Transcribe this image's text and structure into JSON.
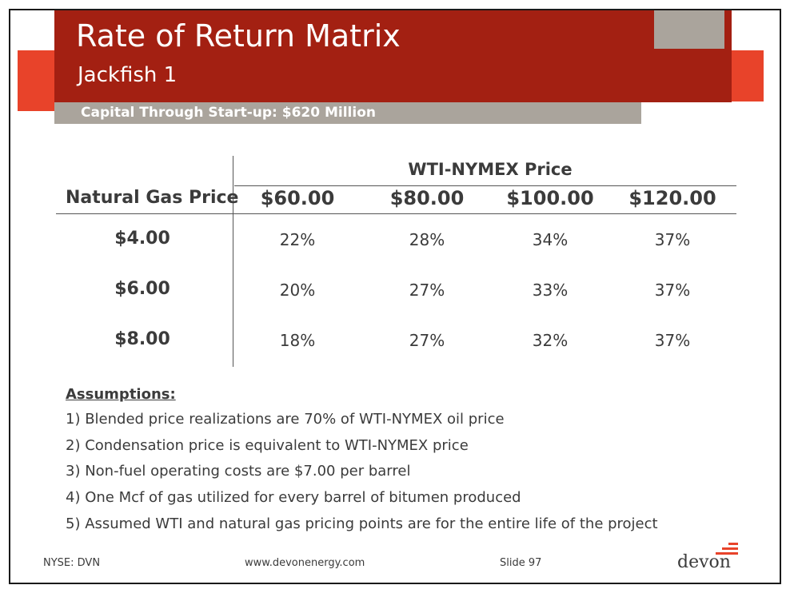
{
  "header": {
    "title": "Rate of Return Matrix",
    "subtitle": "Jackfish 1",
    "capital": "Capital Through Start-up: $620 Million"
  },
  "table": {
    "group_header": "WTI-NYMEX Price",
    "row_header": "Natural Gas Price",
    "columns": [
      "$60.00",
      "$80.00",
      "$100.00",
      "$120.00"
    ],
    "rows": [
      {
        "label": "$4.00",
        "values": [
          "22%",
          "28%",
          "34%",
          "37%"
        ]
      },
      {
        "label": "$6.00",
        "values": [
          "20%",
          "27%",
          "33%",
          "37%"
        ]
      },
      {
        "label": "$8.00",
        "values": [
          "18%",
          "27%",
          "32%",
          "37%"
        ]
      }
    ]
  },
  "assumptions": {
    "heading": "Assumptions:",
    "items": [
      "1) Blended price realizations are 70% of WTI-NYMEX oil price",
      "2) Condensation price is equivalent to WTI-NYMEX price",
      "3) Non-fuel operating costs are $7.00 per barrel",
      "4) One Mcf of gas utilized for every barrel of bitumen produced",
      "5) Assumed WTI and natural gas pricing points are for the entire life of the project"
    ]
  },
  "footer": {
    "ticker": "NYSE: DVN",
    "website": "www.devonenergy.com",
    "slide": "Slide 97",
    "logo": "devon"
  },
  "colors": {
    "header_red": "#a32012",
    "accent_orange": "#e8432a",
    "gray": "#aaa49c",
    "text": "#3b3b3b"
  }
}
